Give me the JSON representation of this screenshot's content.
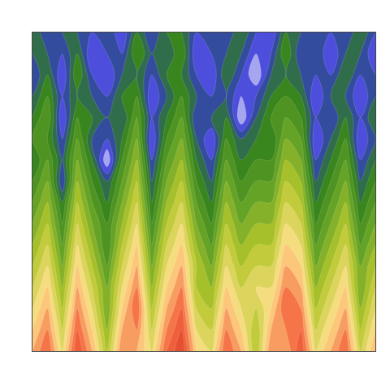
{
  "chart_data": {
    "type": "contour",
    "tick_labels": false,
    "grid": false,
    "xlim": [
      0,
      23
    ],
    "ylim": [
      0,
      15
    ],
    "zlim": [
      0,
      10
    ],
    "x": [
      0,
      1,
      2,
      3,
      4,
      5,
      6,
      7,
      8,
      9,
      10,
      11,
      12,
      13,
      14,
      15,
      16,
      17,
      18,
      19,
      20,
      21,
      22,
      23
    ],
    "y": [
      0,
      1,
      2,
      3,
      4,
      5,
      6,
      7,
      8,
      9,
      10,
      11,
      12,
      13,
      14,
      15
    ],
    "cells": [
      [
        3,
        2,
        4,
        1.5,
        3,
        5,
        2.5,
        3,
        4,
        2,
        1,
        3.5,
        4,
        2,
        3,
        5,
        2.5,
        3,
        1.5,
        4,
        3,
        2,
        4.5,
        3
      ],
      [
        3.5,
        2.5,
        4.5,
        2,
        3.5,
        5.5,
        3,
        2.5,
        4.5,
        2.5,
        1.5,
        4,
        4.5,
        2.5,
        3.5,
        5,
        3,
        2.5,
        2,
        4.5,
        3.5,
        2.5,
        5,
        3.5
      ],
      [
        4,
        3,
        5,
        2.5,
        4,
        6,
        3.5,
        2,
        5,
        3,
        2,
        4.5,
        5,
        3,
        4,
        4.5,
        3.5,
        2,
        2.5,
        5,
        4,
        3,
        5.5,
        4
      ],
      [
        4.5,
        3.5,
        5.5,
        3,
        4.5,
        6,
        4,
        2.5,
        5.5,
        3.5,
        2.5,
        5,
        5.5,
        3.5,
        4.5,
        4,
        4,
        2.5,
        3,
        5.5,
        4.5,
        3.5,
        6,
        4.5
      ],
      [
        5,
        4,
        6,
        3.5,
        5,
        6.5,
        4.5,
        3,
        6,
        4,
        3,
        5,
        6,
        4,
        5,
        4.5,
        4.5,
        3,
        3.5,
        6,
        5,
        4,
        6,
        5
      ],
      [
        5.5,
        4.5,
        6.5,
        4,
        5.5,
        7,
        5,
        3.5,
        6.5,
        4.5,
        3.5,
        5.5,
        6.5,
        4.5,
        5.5,
        5,
        5,
        3.5,
        4,
        6.5,
        5.5,
        4.5,
        6.5,
        5.5
      ],
      [
        6,
        5,
        7,
        4.5,
        6,
        7,
        5.5,
        4,
        7,
        5,
        4,
        6,
        7,
        5,
        6,
        5.5,
        5.5,
        4,
        4.5,
        7,
        6,
        5,
        7,
        6
      ],
      [
        6.5,
        5.5,
        7.5,
        5,
        6.5,
        7.5,
        6,
        4.5,
        7.5,
        5.5,
        4.5,
        6.5,
        7.5,
        5.5,
        6.5,
        6,
        6,
        4.5,
        5,
        7.5,
        6.5,
        5.5,
        7.5,
        6.5
      ],
      [
        7,
        6,
        8.5,
        5.5,
        7,
        8,
        6.5,
        5,
        8,
        6,
        5,
        7,
        8,
        6,
        7,
        6.5,
        6.5,
        5,
        5.5,
        8,
        7,
        6,
        8,
        7
      ],
      [
        7.5,
        6.5,
        8,
        6,
        7.5,
        9.5,
        7,
        5.5,
        8.5,
        6.5,
        5.5,
        7.5,
        8.5,
        6.5,
        7.5,
        7,
        7,
        5.5,
        6,
        8.5,
        7.5,
        6.5,
        8.5,
        7.5
      ],
      [
        7,
        7,
        8.5,
        6.5,
        8,
        8.5,
        7.5,
        6,
        9,
        7,
        6,
        8,
        9,
        7,
        8,
        7.5,
        7.5,
        6,
        6.5,
        9,
        8,
        7,
        9,
        8
      ],
      [
        7.5,
        6.5,
        9,
        7,
        7.5,
        8,
        8,
        6.5,
        8.5,
        7.5,
        6.5,
        8.5,
        8,
        7.5,
        9.5,
        8,
        7,
        6.5,
        7,
        8.5,
        8.5,
        7.5,
        8.5,
        7.5
      ],
      [
        8,
        7,
        8.5,
        7.5,
        8,
        8.5,
        7.5,
        7,
        9,
        8,
        7,
        8,
        8.5,
        8,
        9,
        8.5,
        7.5,
        7,
        7.5,
        9,
        8,
        8,
        9,
        8
      ],
      [
        8.5,
        7.5,
        9,
        7,
        8.5,
        9,
        8,
        7.5,
        8.5,
        7.5,
        7.5,
        8.5,
        9,
        7.5,
        8.5,
        9.5,
        8,
        7.5,
        8,
        8.5,
        8.5,
        7.5,
        8.5,
        8.5
      ],
      [
        8,
        8,
        8.5,
        7.5,
        9,
        8.5,
        8.5,
        7,
        8,
        8,
        7,
        9,
        8.5,
        8,
        8,
        9,
        8.5,
        7,
        8.5,
        8,
        9,
        8,
        8,
        9
      ],
      [
        7.5,
        8.5,
        8,
        8,
        8.5,
        8,
        9,
        7.5,
        8.5,
        7.5,
        7.5,
        8.5,
        8,
        8.5,
        7.5,
        8.5,
        9,
        7.5,
        8,
        8.5,
        8.5,
        8.5,
        7.5,
        8.5
      ]
    ]
  }
}
